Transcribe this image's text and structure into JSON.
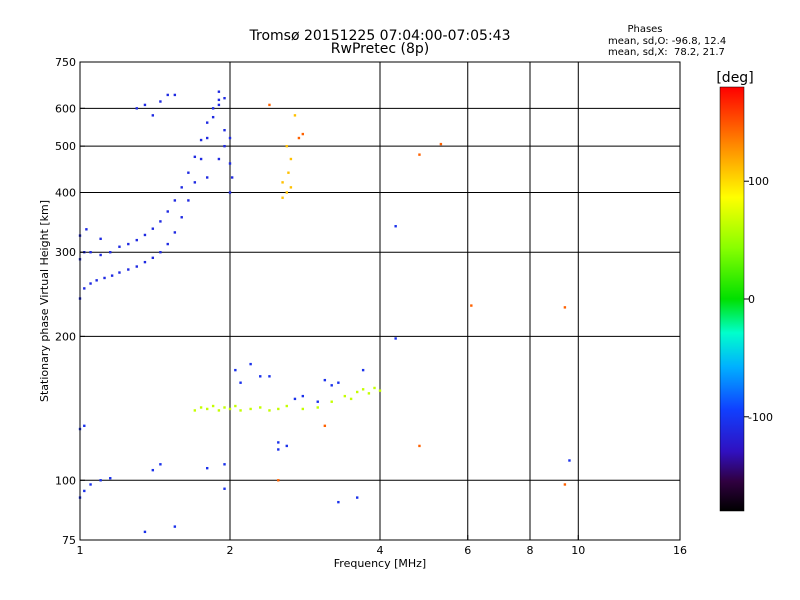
{
  "chart_data": {
    "type": "scatter",
    "title": "Tromsø 20151225 07:04:00-07:05:43",
    "subtitle": "RwPretec (8p)",
    "stats": {
      "heading": "Phases",
      "line_o": "mean, sd,O: -96.8, 12.4",
      "line_x": "mean, sd,X:  78.2, 21.7"
    },
    "xlabel": "Frequency [MHz]",
    "ylabel": "Stationary phase Virtual Height [km]",
    "x_scale": "log",
    "y_scale": "log",
    "xlim": [
      1,
      16
    ],
    "ylim": [
      75,
      750
    ],
    "x_ticks": [
      1,
      2,
      4,
      6,
      8,
      10,
      16
    ],
    "x_grid": [
      2,
      4,
      6,
      8,
      10
    ],
    "y_ticks": [
      75,
      100,
      200,
      300,
      400,
      500,
      600,
      750
    ],
    "y_grid": [
      100,
      200,
      300,
      400,
      500,
      600
    ],
    "grid": true,
    "colorbar": {
      "label": "[deg]",
      "min": -180,
      "max": 180,
      "ticks": [
        100,
        0,
        -100
      ]
    },
    "series": [
      {
        "color_value": -110,
        "points": [
          [
            1.0,
            240
          ],
          [
            1.02,
            252
          ],
          [
            1.05,
            258
          ],
          [
            1.08,
            262
          ],
          [
            1.12,
            265
          ],
          [
            1.16,
            268
          ],
          [
            1.2,
            272
          ],
          [
            1.25,
            276
          ],
          [
            1.3,
            280
          ],
          [
            1.35,
            286
          ],
          [
            1.4,
            292
          ],
          [
            1.45,
            300
          ],
          [
            1.5,
            312
          ],
          [
            1.55,
            330
          ],
          [
            1.6,
            355
          ],
          [
            1.65,
            385
          ],
          [
            1.7,
            420
          ],
          [
            1.75,
            470
          ],
          [
            1.8,
            520
          ],
          [
            1.85,
            575
          ],
          [
            1.9,
            610
          ],
          [
            1.95,
            630
          ],
          [
            1.0,
            290
          ],
          [
            1.02,
            300
          ],
          [
            1.05,
            300
          ],
          [
            1.1,
            296
          ],
          [
            1.15,
            300
          ],
          [
            1.2,
            308
          ],
          [
            1.25,
            312
          ],
          [
            1.3,
            318
          ],
          [
            1.35,
            326
          ],
          [
            1.4,
            336
          ],
          [
            1.45,
            348
          ],
          [
            1.5,
            365
          ],
          [
            1.55,
            385
          ],
          [
            1.6,
            410
          ],
          [
            1.65,
            440
          ],
          [
            1.7,
            475
          ],
          [
            1.75,
            515
          ],
          [
            1.8,
            560
          ],
          [
            1.85,
            600
          ],
          [
            1.9,
            625
          ],
          [
            1.0,
            325
          ],
          [
            1.03,
            335
          ],
          [
            1.1,
            320
          ],
          [
            1.4,
            580
          ],
          [
            1.45,
            620
          ],
          [
            1.5,
            640
          ],
          [
            1.55,
            640
          ],
          [
            1.3,
            600
          ],
          [
            1.35,
            610
          ],
          [
            1.8,
            430
          ],
          [
            1.9,
            470
          ],
          [
            1.95,
            500
          ],
          [
            2.0,
            520
          ],
          [
            2.0,
            460
          ],
          [
            2.0,
            400
          ],
          [
            2.02,
            430
          ],
          [
            1.95,
            540
          ],
          [
            1.9,
            650
          ]
        ]
      },
      {
        "color_value": -105,
        "points": [
          [
            1.0,
            92
          ],
          [
            1.02,
            95
          ],
          [
            1.05,
            98
          ],
          [
            1.1,
            100
          ],
          [
            1.15,
            101
          ],
          [
            1.0,
            128
          ],
          [
            1.02,
            130
          ],
          [
            1.4,
            105
          ],
          [
            1.45,
            108
          ],
          [
            1.35,
            78
          ],
          [
            1.55,
            80
          ],
          [
            1.8,
            106
          ],
          [
            1.95,
            108
          ],
          [
            1.95,
            96
          ],
          [
            2.05,
            170
          ],
          [
            2.1,
            160
          ],
          [
            2.2,
            175
          ],
          [
            2.3,
            165
          ],
          [
            2.4,
            165
          ],
          [
            2.5,
            120
          ],
          [
            2.5,
            116
          ],
          [
            2.6,
            118
          ],
          [
            2.7,
            148
          ],
          [
            2.8,
            150
          ],
          [
            3.0,
            146
          ],
          [
            3.1,
            162
          ],
          [
            3.2,
            158
          ],
          [
            3.3,
            160
          ],
          [
            3.3,
            90
          ],
          [
            3.6,
            92
          ],
          [
            3.7,
            170
          ],
          [
            4.3,
            198
          ],
          [
            4.3,
            340
          ],
          [
            9.6,
            110
          ]
        ]
      },
      {
        "color_value": 65,
        "points": [
          [
            1.7,
            140
          ],
          [
            1.75,
            142
          ],
          [
            1.8,
            141
          ],
          [
            1.85,
            143
          ],
          [
            1.9,
            140
          ],
          [
            1.95,
            142
          ],
          [
            2.0,
            141
          ],
          [
            2.05,
            143
          ],
          [
            2.1,
            140
          ],
          [
            2.2,
            141
          ],
          [
            2.3,
            142
          ],
          [
            2.4,
            140
          ],
          [
            2.5,
            141
          ],
          [
            2.6,
            143
          ],
          [
            2.8,
            141
          ],
          [
            3.0,
            142
          ],
          [
            3.2,
            146
          ],
          [
            3.4,
            150
          ],
          [
            3.5,
            148
          ],
          [
            3.6,
            153
          ],
          [
            3.7,
            155
          ],
          [
            3.8,
            152
          ],
          [
            3.9,
            156
          ],
          [
            4.0,
            154
          ]
        ]
      },
      {
        "color_value": 110,
        "points": [
          [
            2.55,
            390
          ],
          [
            2.6,
            400
          ],
          [
            2.65,
            410
          ],
          [
            2.55,
            420
          ],
          [
            2.62,
            440
          ],
          [
            2.65,
            470
          ],
          [
            2.6,
            500
          ],
          [
            2.7,
            580
          ]
        ]
      },
      {
        "color_value": 145,
        "points": [
          [
            2.4,
            610
          ],
          [
            2.75,
            520
          ],
          [
            2.8,
            530
          ],
          [
            4.8,
            480
          ],
          [
            5.3,
            505
          ],
          [
            6.1,
            232
          ],
          [
            9.4,
            230
          ],
          [
            2.5,
            100
          ],
          [
            3.1,
            130
          ],
          [
            4.8,
            118
          ],
          [
            9.4,
            98
          ]
        ]
      }
    ]
  }
}
